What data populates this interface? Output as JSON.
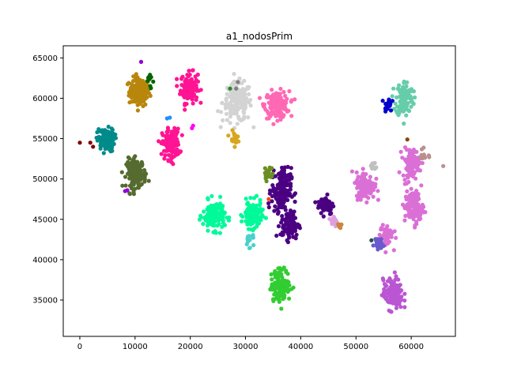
{
  "chart_data": {
    "type": "scatter",
    "title": "a1_nodosPrim",
    "xlabel": "",
    "ylabel": "",
    "xlim": [
      -3000,
      68000
    ],
    "ylim": [
      30500,
      66500
    ],
    "xticks": [
      0,
      10000,
      20000,
      30000,
      40000,
      50000,
      60000
    ],
    "yticks": [
      35000,
      40000,
      45000,
      50000,
      55000,
      60000,
      65000
    ],
    "xtick_labels": [
      "0",
      "10000",
      "20000",
      "30000",
      "40000",
      "50000",
      "60000"
    ],
    "ytick_labels": [
      "35000",
      "40000",
      "45000",
      "50000",
      "55000",
      "60000",
      "65000"
    ],
    "grid": false,
    "legend": "none",
    "clusters": [
      {
        "color": "#b8860b",
        "center": [
          10800,
          60800
        ],
        "spread": [
          1700,
          1600
        ],
        "count": 150
      },
      {
        "color": "#ff1493",
        "center": [
          19800,
          61300
        ],
        "spread": [
          1400,
          1700
        ],
        "count": 130
      },
      {
        "color": "#d3d3d3",
        "center": [
          28500,
          59500
        ],
        "spread": [
          2400,
          2200
        ],
        "count": 170
      },
      {
        "color": "#ff69b4",
        "center": [
          35700,
          59200
        ],
        "spread": [
          2000,
          1500
        ],
        "count": 160
      },
      {
        "color": "#66cdaa",
        "center": [
          58800,
          60000
        ],
        "spread": [
          1400,
          2000
        ],
        "count": 120
      },
      {
        "color": "#008b8b",
        "center": [
          4700,
          54800
        ],
        "spread": [
          1400,
          1300
        ],
        "count": 120
      },
      {
        "color": "#ff1493",
        "center": [
          16500,
          54300
        ],
        "spread": [
          1400,
          1700
        ],
        "count": 140
      },
      {
        "color": "#556b2f",
        "center": [
          10200,
          50700
        ],
        "spread": [
          1600,
          1600
        ],
        "count": 150
      },
      {
        "color": "#00fa9a",
        "center": [
          24300,
          45500
        ],
        "spread": [
          1800,
          1600
        ],
        "count": 140
      },
      {
        "color": "#00fa9a",
        "center": [
          31300,
          45500
        ],
        "spread": [
          1500,
          1500
        ],
        "count": 120
      },
      {
        "color": "#4b0082",
        "center": [
          36500,
          48600
        ],
        "spread": [
          1600,
          2500
        ],
        "count": 170
      },
      {
        "color": "#4b0082",
        "center": [
          38000,
          44300
        ],
        "spread": [
          1500,
          1600
        ],
        "count": 100
      },
      {
        "color": "#4b0082",
        "center": [
          44500,
          46800
        ],
        "spread": [
          1300,
          1100
        ],
        "count": 70
      },
      {
        "color": "#da70d6",
        "center": [
          51700,
          49200
        ],
        "spread": [
          1500,
          1500
        ],
        "count": 140
      },
      {
        "color": "#da70d6",
        "center": [
          60000,
          52000
        ],
        "spread": [
          1400,
          1600
        ],
        "count": 110
      },
      {
        "color": "#da70d6",
        "center": [
          60500,
          46500
        ],
        "spread": [
          1500,
          1800
        ],
        "count": 140
      },
      {
        "color": "#da70d6",
        "center": [
          55500,
          43000
        ],
        "spread": [
          1100,
          1300
        ],
        "count": 60
      },
      {
        "color": "#6a5acd",
        "center": [
          53900,
          42100
        ],
        "spread": [
          700,
          700
        ],
        "count": 30
      },
      {
        "color": "#ba55d3",
        "center": [
          56700,
          35700
        ],
        "spread": [
          1600,
          1700
        ],
        "count": 150
      },
      {
        "color": "#32cd32",
        "center": [
          36400,
          36800
        ],
        "spread": [
          1600,
          1800
        ],
        "count": 150
      },
      {
        "color": "#6b8e23",
        "center": [
          34100,
          50700
        ],
        "spread": [
          700,
          900
        ],
        "count": 25
      },
      {
        "color": "#daa520",
        "center": [
          27800,
          55100
        ],
        "spread": [
          700,
          700
        ],
        "count": 20
      },
      {
        "color": "#0000cd",
        "center": [
          55800,
          59300
        ],
        "spread": [
          600,
          800
        ],
        "count": 18
      },
      {
        "color": "#006400",
        "center": [
          12600,
          62100
        ],
        "spread": [
          500,
          1000
        ],
        "count": 10
      },
      {
        "color": "#48d1cc",
        "center": [
          30800,
          42500
        ],
        "spread": [
          700,
          1000
        ],
        "count": 15
      },
      {
        "color": "#dda0dd",
        "center": [
          46000,
          44800
        ],
        "spread": [
          600,
          800
        ],
        "count": 20
      },
      {
        "color": "#cd853f",
        "center": [
          46800,
          44300
        ],
        "spread": [
          700,
          500
        ],
        "count": 8
      },
      {
        "color": "#bc8f8f",
        "center": [
          62400,
          53000
        ],
        "spread": [
          600,
          900
        ],
        "count": 12
      },
      {
        "color": "#c0c0c0",
        "center": [
          53200,
          51500
        ],
        "spread": [
          500,
          500
        ],
        "count": 10
      }
    ],
    "extra_points": [
      {
        "color": "#800000",
        "x": 0,
        "y": 54500
      },
      {
        "color": "#800000",
        "x": 1900,
        "y": 54500
      },
      {
        "color": "#800000",
        "x": 2400,
        "y": 54000
      },
      {
        "color": "#9400d3",
        "x": 8200,
        "y": 48500
      },
      {
        "color": "#9400d3",
        "x": 8600,
        "y": 48600
      },
      {
        "color": "#1e90ff",
        "x": 15800,
        "y": 57500
      },
      {
        "color": "#1e90ff",
        "x": 16300,
        "y": 57600
      },
      {
        "color": "#ff00ff",
        "x": 20300,
        "y": 56300
      },
      {
        "color": "#ff00ff",
        "x": 20500,
        "y": 56600
      },
      {
        "color": "#9400d3",
        "x": 11100,
        "y": 64500
      },
      {
        "color": "#808080",
        "x": 28300,
        "y": 61200
      },
      {
        "color": "#808080",
        "x": 28600,
        "y": 62000
      },
      {
        "color": "#228b22",
        "x": 27200,
        "y": 61200
      },
      {
        "color": "#ff4500",
        "x": 34200,
        "y": 47500
      },
      {
        "color": "#8b4513",
        "x": 59300,
        "y": 54900
      },
      {
        "color": "#2f4f4f",
        "x": 52800,
        "y": 42400
      },
      {
        "color": "#bc8f8f",
        "x": 65800,
        "y": 51600
      }
    ]
  }
}
